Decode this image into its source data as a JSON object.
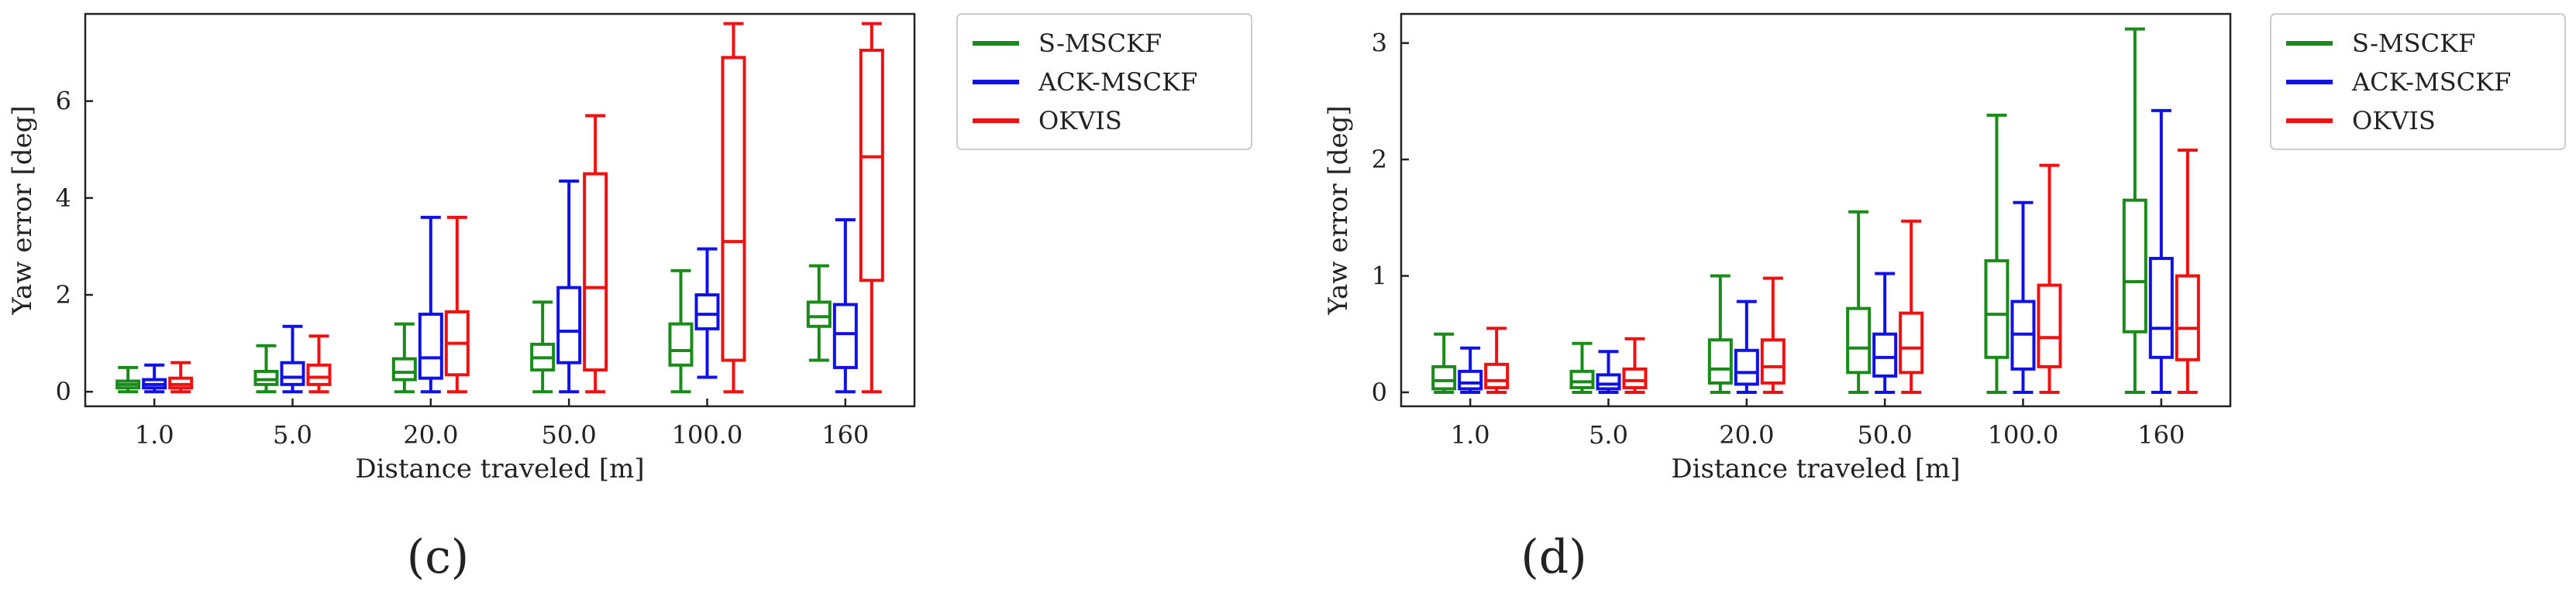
{
  "series_colors": {
    "S-MSCKF": "#1a8a1a",
    "ACK-MSCKF": "#1010e8",
    "OKVIS": "#f01010"
  },
  "chart_data": [
    {
      "type": "box",
      "panel_label": "(c)",
      "xlabel": "Distance traveled [m]",
      "ylabel": "Yaw error [deg]",
      "ylim": [
        -0.3,
        7.8
      ],
      "yticks": [
        0,
        2,
        4,
        6
      ],
      "categories": [
        "1.0",
        "5.0",
        "20.0",
        "50.0",
        "100.0",
        "160"
      ],
      "legend_position": "outside-top-right",
      "series": [
        {
          "name": "S-MSCKF",
          "boxes": [
            {
              "whislo": 0.0,
              "q1": 0.08,
              "med": 0.15,
              "q3": 0.22,
              "whishi": 0.5
            },
            {
              "whislo": 0.0,
              "q1": 0.15,
              "med": 0.25,
              "q3": 0.42,
              "whishi": 0.95
            },
            {
              "whislo": 0.0,
              "q1": 0.25,
              "med": 0.4,
              "q3": 0.68,
              "whishi": 1.4
            },
            {
              "whislo": 0.0,
              "q1": 0.45,
              "med": 0.7,
              "q3": 0.98,
              "whishi": 1.85
            },
            {
              "whislo": 0.0,
              "q1": 0.55,
              "med": 0.85,
              "q3": 1.4,
              "whishi": 2.5
            },
            {
              "whislo": 0.65,
              "q1": 1.35,
              "med": 1.55,
              "q3": 1.85,
              "whishi": 2.6
            }
          ]
        },
        {
          "name": "ACK-MSCKF",
          "boxes": [
            {
              "whislo": 0.0,
              "q1": 0.08,
              "med": 0.15,
              "q3": 0.25,
              "whishi": 0.55
            },
            {
              "whislo": 0.0,
              "q1": 0.15,
              "med": 0.3,
              "q3": 0.6,
              "whishi": 1.35
            },
            {
              "whislo": 0.0,
              "q1": 0.28,
              "med": 0.7,
              "q3": 1.6,
              "whishi": 3.6
            },
            {
              "whislo": 0.0,
              "q1": 0.6,
              "med": 1.25,
              "q3": 2.15,
              "whishi": 4.35
            },
            {
              "whislo": 0.3,
              "q1": 1.3,
              "med": 1.6,
              "q3": 2.0,
              "whishi": 2.95
            },
            {
              "whislo": 0.0,
              "q1": 0.5,
              "med": 1.2,
              "q3": 1.8,
              "whishi": 3.55
            }
          ]
        },
        {
          "name": "OKVIS",
          "boxes": [
            {
              "whislo": 0.0,
              "q1": 0.08,
              "med": 0.15,
              "q3": 0.28,
              "whishi": 0.6
            },
            {
              "whislo": 0.0,
              "q1": 0.15,
              "med": 0.3,
              "q3": 0.55,
              "whishi": 1.15
            },
            {
              "whislo": 0.0,
              "q1": 0.35,
              "med": 1.0,
              "q3": 1.65,
              "whishi": 3.6
            },
            {
              "whislo": 0.0,
              "q1": 0.45,
              "med": 2.15,
              "q3": 4.5,
              "whishi": 5.7
            },
            {
              "whislo": 0.0,
              "q1": 0.65,
              "med": 3.1,
              "q3": 6.9,
              "whishi": 7.6
            },
            {
              "whislo": 0.0,
              "q1": 2.3,
              "med": 4.85,
              "q3": 7.05,
              "whishi": 7.6
            }
          ]
        }
      ]
    },
    {
      "type": "box",
      "panel_label": "(d)",
      "xlabel": "Distance traveled [m]",
      "ylabel": "Yaw error [deg]",
      "ylim": [
        -0.12,
        3.25
      ],
      "yticks": [
        0,
        1,
        2,
        3
      ],
      "categories": [
        "1.0",
        "5.0",
        "20.0",
        "50.0",
        "100.0",
        "160"
      ],
      "legend_position": "outside-top-right",
      "series": [
        {
          "name": "S-MSCKF",
          "boxes": [
            {
              "whislo": 0.0,
              "q1": 0.03,
              "med": 0.1,
              "q3": 0.22,
              "whishi": 0.5
            },
            {
              "whislo": 0.0,
              "q1": 0.04,
              "med": 0.09,
              "q3": 0.18,
              "whishi": 0.42
            },
            {
              "whislo": 0.0,
              "q1": 0.08,
              "med": 0.2,
              "q3": 0.45,
              "whishi": 1.0
            },
            {
              "whislo": 0.0,
              "q1": 0.17,
              "med": 0.38,
              "q3": 0.72,
              "whishi": 1.55
            },
            {
              "whislo": 0.0,
              "q1": 0.3,
              "med": 0.67,
              "q3": 1.13,
              "whishi": 2.38
            },
            {
              "whislo": 0.0,
              "q1": 0.52,
              "med": 0.95,
              "q3": 1.65,
              "whishi": 3.12
            }
          ]
        },
        {
          "name": "ACK-MSCKF",
          "boxes": [
            {
              "whislo": 0.0,
              "q1": 0.03,
              "med": 0.08,
              "q3": 0.18,
              "whishi": 0.38
            },
            {
              "whislo": 0.0,
              "q1": 0.03,
              "med": 0.07,
              "q3": 0.15,
              "whishi": 0.35
            },
            {
              "whislo": 0.0,
              "q1": 0.07,
              "med": 0.17,
              "q3": 0.36,
              "whishi": 0.78
            },
            {
              "whislo": 0.0,
              "q1": 0.14,
              "med": 0.3,
              "q3": 0.5,
              "whishi": 1.02
            },
            {
              "whislo": 0.0,
              "q1": 0.2,
              "med": 0.5,
              "q3": 0.78,
              "whishi": 1.63
            },
            {
              "whislo": 0.0,
              "q1": 0.3,
              "med": 0.55,
              "q3": 1.15,
              "whishi": 2.42
            }
          ]
        },
        {
          "name": "OKVIS",
          "boxes": [
            {
              "whislo": 0.0,
              "q1": 0.04,
              "med": 0.1,
              "q3": 0.24,
              "whishi": 0.55
            },
            {
              "whislo": 0.0,
              "q1": 0.04,
              "med": 0.1,
              "q3": 0.2,
              "whishi": 0.46
            },
            {
              "whislo": 0.0,
              "q1": 0.08,
              "med": 0.22,
              "q3": 0.45,
              "whishi": 0.98
            },
            {
              "whislo": 0.0,
              "q1": 0.17,
              "med": 0.38,
              "q3": 0.68,
              "whishi": 1.47
            },
            {
              "whislo": 0.0,
              "q1": 0.22,
              "med": 0.47,
              "q3": 0.92,
              "whishi": 1.95
            },
            {
              "whislo": 0.0,
              "q1": 0.28,
              "med": 0.55,
              "q3": 1.0,
              "whishi": 2.08
            }
          ]
        }
      ]
    }
  ]
}
